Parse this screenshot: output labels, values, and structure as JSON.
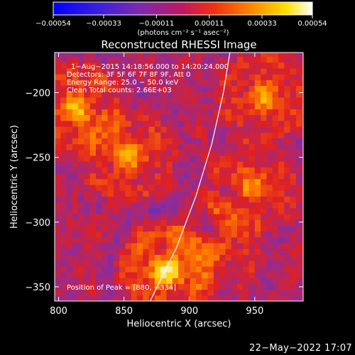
{
  "chart_data": {
    "type": "heatmap",
    "title": "Reconstructed RHESSI Image",
    "xlabel": "Heliocentric X (arcsec)",
    "ylabel": "Heliocentric Y (arcsec)",
    "xlim": [
      797,
      987
    ],
    "ylim": [
      -361,
      -169
    ],
    "x_ticks": [
      {
        "value": 800,
        "label": "800"
      },
      {
        "value": 850,
        "label": "850"
      },
      {
        "value": 900,
        "label": "900"
      },
      {
        "value": 950,
        "label": "950"
      }
    ],
    "y_ticks": [
      {
        "value": -200,
        "label": "−200"
      },
      {
        "value": -250,
        "label": "−250"
      },
      {
        "value": -300,
        "label": "−300"
      },
      {
        "value": -350,
        "label": "−350"
      }
    ],
    "colorbar": {
      "range": [
        -0.00054,
        0.00054
      ],
      "ticks": [
        {
          "value": -0.00054,
          "label": "−0.00054"
        },
        {
          "value": -0.00033,
          "label": "−0.00033"
        },
        {
          "value": -0.00011,
          "label": "−0.00011"
        },
        {
          "value": 0.00011,
          "label": "0.00011"
        },
        {
          "value": 0.00033,
          "label": "0.00033"
        },
        {
          "value": 0.00054,
          "label": "0.00054"
        }
      ],
      "unit_label": "(photons cm⁻² s⁻¹ asec⁻²)",
      "colors": [
        "#0000ff",
        "#5a32c8",
        "#9a2a8a",
        "#e02020",
        "#ff7a00",
        "#ffd000",
        "#ffffff"
      ]
    },
    "annotations": [
      "1−Aug−2015 14:18:56.000 to 14:20:24.000",
      "Detectors: 3F 5F 6F 7F 8F 9F, Att 0",
      "Energy Range: 25.0 − 50.0 keV",
      "Clean    Total counts: 2.66E+03"
    ],
    "peak_label": "Position of Peak = [880, −334]",
    "peak_position": [
      880,
      -334
    ],
    "limb_curve": [
      [
        870,
        -361
      ],
      [
        890,
        -320
      ],
      [
        905,
        -280
      ],
      [
        917,
        -240
      ],
      [
        926,
        -200
      ],
      [
        931,
        -169
      ]
    ],
    "bright_sources": [
      {
        "x": 880,
        "y": -340,
        "value": 0.00054
      },
      {
        "x": 812,
        "y": -215,
        "value": 0.0004
      },
      {
        "x": 850,
        "y": -250,
        "value": 0.00035
      },
      {
        "x": 945,
        "y": -275,
        "value": 0.0003
      },
      {
        "x": 955,
        "y": -205,
        "value": 0.00033
      },
      {
        "x": 920,
        "y": -320,
        "value": 0.00025
      }
    ],
    "background_level": -0.00011,
    "grid": false
  },
  "footer": {
    "date": "22−May−2022 17:07"
  }
}
